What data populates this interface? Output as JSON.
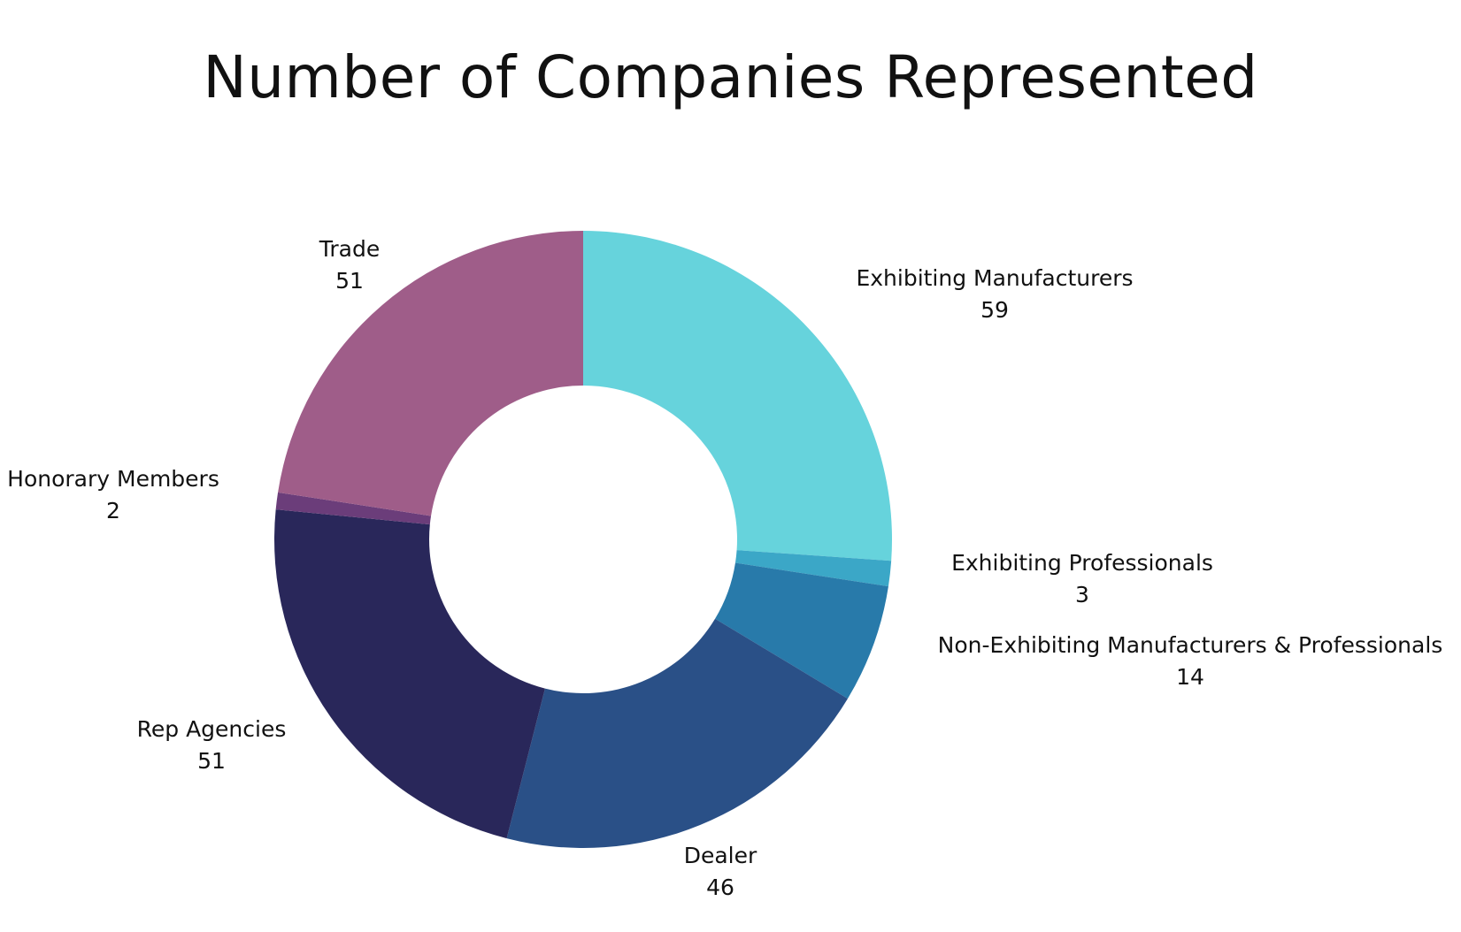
{
  "chart_data": {
    "type": "pie",
    "title": "Number of Companies Represented",
    "categories": [
      "Exhibiting Manufacturers",
      "Exhibiting Professionals",
      "Non-Exhibiting Manufacturers & Professionals",
      "Dealer",
      "Rep Agencies",
      "Honorary Members",
      "Trade"
    ],
    "values": [
      59,
      3,
      14,
      46,
      51,
      2,
      51
    ],
    "colors": [
      "#66d3dc",
      "#3ba7c7",
      "#287aaa",
      "#2a5087",
      "#29275a",
      "#6b3d7a",
      "#9f5d89"
    ],
    "donut": true,
    "labels": [
      {
        "name": "Exhibiting Manufacturers",
        "value": "59"
      },
      {
        "name": "Exhibiting Professionals",
        "value": "3"
      },
      {
        "name": "Non-Exhibiting Manufacturers & Professionals",
        "value": "14"
      },
      {
        "name": "Dealer",
        "value": "46"
      },
      {
        "name": "Rep Agencies",
        "value": "51"
      },
      {
        "name": "Honorary Members",
        "value": "2"
      },
      {
        "name": "Trade",
        "value": "51"
      }
    ]
  }
}
